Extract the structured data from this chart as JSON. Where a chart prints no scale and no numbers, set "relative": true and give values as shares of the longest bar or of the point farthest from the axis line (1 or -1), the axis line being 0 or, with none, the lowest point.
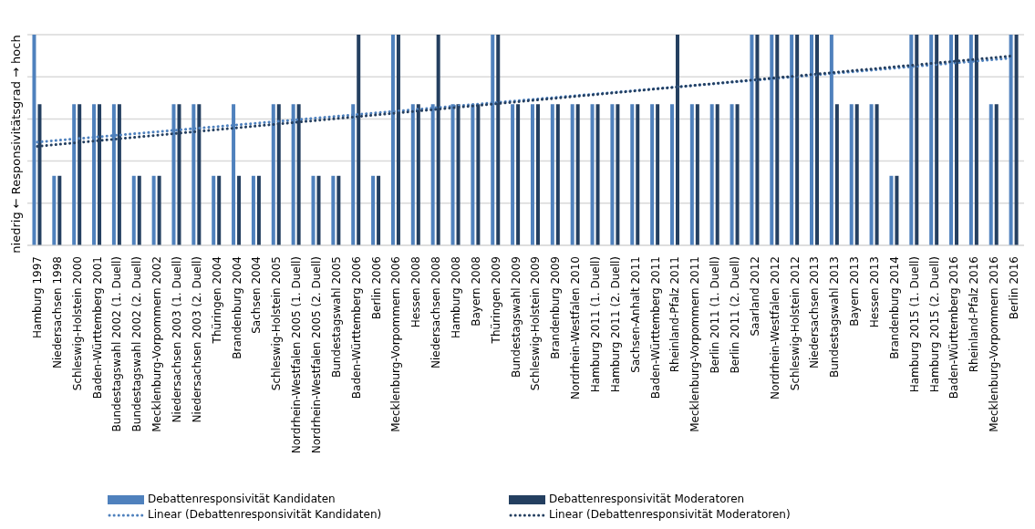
{
  "chart_data": {
    "type": "bar",
    "relative": true,
    "ylabel": "niedrig ← Responsivitätsgrad → hoch",
    "grid": "y",
    "legend": "bottom",
    "categories": [
      "Hamburg 1997",
      "Niedersachsen 1998",
      "Schleswig-Holstein 2000",
      "Baden-Württemberg 2001",
      "Bundestagswahl 2002 (1. Duell)",
      "Bundestagswahl 2002 (2. Duell)",
      "Mecklenburg-Vorpommern 2002",
      "Niedersachsen 2003 (1. Duell)",
      "Niedersachsen 2003 (2. Duell)",
      "Thüringen 2004",
      "Brandenburg 2004",
      "Sachsen 2004",
      "Schleswig-Holstein 2005",
      "Nordrhein-Westfalen 2005 (1. Duell)",
      "Nordrhein-Westfalen 2005 (2. Duell)",
      "Bundestagswahl 2005",
      "Baden-Württemberg 2006",
      "Berlin 2006",
      "Mecklenburg-Vorpommern 2006",
      "Hessen 2008",
      "Niedersachsen 2008",
      "Hamburg 2008",
      "Bayern 2008",
      "Thüringen 2009",
      "Bundestagswahl 2009",
      "Schleswig-Holstein 2009",
      "Brandenburg 2009",
      "Nordrhein-Westfalen 2010",
      "Hamburg 2011 (1. Duell)",
      "Hamburg 2011 (2. Duell)",
      "Sachsen-Anhalt 2011",
      "Baden-Württemberg 2011",
      "Rheinland-Pfalz 2011",
      "Mecklenburg-Vorpommern 2011",
      "Berlin 2011 (1. Duell)",
      "Berlin 2011 (2. Duell)",
      "Saarland 2012",
      "Nordrhein-Westfalen 2012",
      "Schleswig-Holstein 2012",
      "Niedersachsen 2013",
      "Bundestagswahl 2013",
      "Bayern 2013",
      "Hessen 2013",
      "Brandenburg 2014",
      "Hamburg 2015 (1. Duell)",
      "Hamburg 2015 (2. Duell)",
      "Baden-Württemberg 2016",
      "Rheinland-Pfalz 2016",
      "Mecklenburg-Vorpommern 2016",
      "Berlin 2016"
    ],
    "series": [
      {
        "name": "Debattenresponsivität Kandidaten",
        "color": "#4f81bd",
        "values": [
          1,
          0.33,
          0.67,
          0.67,
          0.67,
          0.33,
          0.33,
          0.67,
          0.67,
          0.33,
          0.67,
          0.33,
          0.67,
          0.67,
          0.33,
          0.33,
          0.67,
          0.33,
          1,
          0.67,
          0.67,
          0.67,
          0.67,
          1,
          0.67,
          0.67,
          0.67,
          0.67,
          0.67,
          0.67,
          0.67,
          0.67,
          0.67,
          0.67,
          0.67,
          0.67,
          1,
          1,
          1,
          1,
          1,
          0.67,
          0.67,
          0.33,
          1,
          1,
          1,
          1,
          0.67,
          1
        ]
      },
      {
        "name": "Debattenresponsivität Moderatoren",
        "color": "#243f60",
        "values": [
          0.67,
          0.33,
          0.67,
          0.67,
          0.67,
          0.33,
          0.33,
          0.67,
          0.67,
          0.33,
          0.33,
          0.33,
          0.67,
          0.67,
          0.33,
          0.33,
          1,
          0.33,
          1,
          0.67,
          1,
          0.67,
          0.67,
          1,
          0.67,
          0.67,
          0.67,
          0.67,
          0.67,
          0.67,
          0.67,
          0.67,
          1,
          0.67,
          0.67,
          0.67,
          1,
          1,
          1,
          1,
          0.67,
          0.67,
          0.67,
          0.33,
          1,
          1,
          1,
          1,
          0.67,
          1
        ]
      },
      {
        "name": "Linear (Debattenresponsivität Kandidaten)",
        "type": "line",
        "line_style": "dotted",
        "color": "#4f81bd",
        "x": [
          "Hamburg 1997",
          "Berlin 2016"
        ],
        "values": [
          0.49,
          0.89
        ]
      },
      {
        "name": "Linear (Debattenresponsivität Moderatoren)",
        "type": "line",
        "line_style": "dotted",
        "color": "#243f60",
        "x": [
          "Hamburg 1997",
          "Berlin 2016"
        ],
        "values": [
          0.47,
          0.9
        ]
      }
    ]
  }
}
